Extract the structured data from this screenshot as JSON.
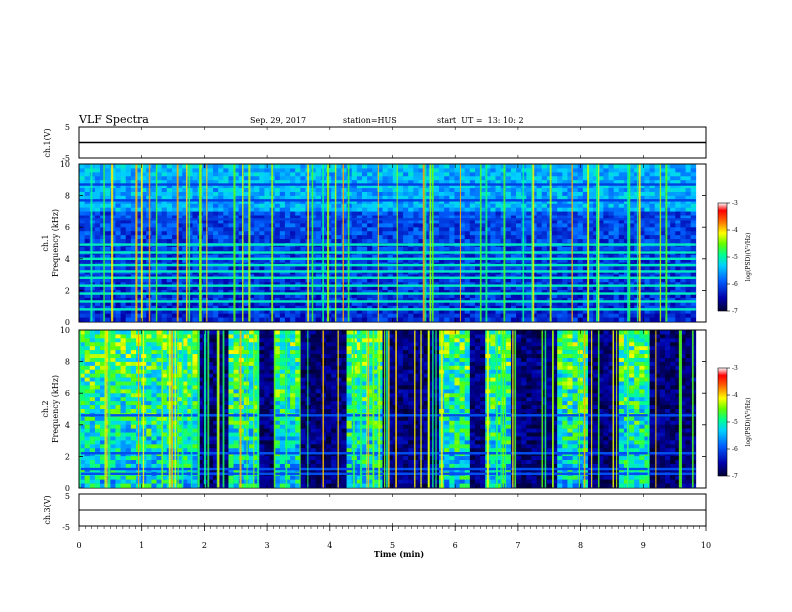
{
  "header": {
    "title": "VLF Spectra",
    "date": "Sep. 29, 2017",
    "station": "station=HUS",
    "start_ut": "start  UT =  13: 10: 2"
  },
  "chart_data": [
    {
      "type": "line",
      "name": "ch1-waveform",
      "ylabel": "ch.1(V)",
      "ylim": [
        -5,
        5
      ],
      "yticks": [
        "5",
        "-5"
      ],
      "xlim": [
        0,
        10
      ],
      "level": 0,
      "color": "#000000"
    },
    {
      "type": "heatmap",
      "name": "ch1-spectrogram",
      "ylabel": "ch.1\nFrequency (kHz)",
      "ylim": [
        0,
        10
      ],
      "yticks": [
        "0",
        "2",
        "4",
        "6",
        "8",
        "10"
      ],
      "xlim": [
        0,
        9.83
      ],
      "background_level": -6.3,
      "bands_khz": [
        0.8,
        1.3,
        1.8,
        2.3,
        2.8,
        3.2,
        3.6,
        4.0,
        4.4,
        4.9,
        6.5,
        7.7,
        8.7
      ],
      "colorbar": {
        "label": "log(PSD)(V²/Hz)",
        "ticks": [
          "-3",
          "-4",
          "-5",
          "-6",
          "-7"
        ],
        "range": [
          -7,
          -3
        ]
      }
    },
    {
      "type": "heatmap",
      "name": "ch2-spectrogram",
      "ylabel": "ch.2\nFrequency (kHz)",
      "ylim": [
        0,
        10
      ],
      "yticks": [
        "0",
        "2",
        "4",
        "6",
        "8",
        "10"
      ],
      "xlim": [
        0,
        9.83
      ],
      "background_level": -7,
      "bands_khz": [
        0.9,
        1.2,
        2.2,
        4.6
      ],
      "noise_bursts_min": [
        [
          0.0,
          1.9
        ],
        [
          2.4,
          2.9
        ],
        [
          3.1,
          3.5
        ],
        [
          4.3,
          4.8
        ],
        [
          5.7,
          6.2
        ],
        [
          6.5,
          6.9
        ],
        [
          7.6,
          8.1
        ],
        [
          8.6,
          9.1
        ]
      ],
      "colorbar": {
        "label": "log(PSD)(V²/Hz)",
        "ticks": [
          "-3",
          "-4",
          "-5",
          "-6",
          "-7"
        ],
        "range": [
          -7,
          -3
        ]
      }
    },
    {
      "type": "line",
      "name": "ch3-waveform",
      "ylabel": "ch.3(V)",
      "ylim": [
        -5,
        5
      ],
      "yticks": [
        "5",
        "-5"
      ],
      "xlim": [
        0,
        10
      ],
      "level": 0,
      "color": "#000000"
    }
  ],
  "x_axis": {
    "label": "Time (min)",
    "ticks": [
      "0",
      "1",
      "2",
      "3",
      "4",
      "5",
      "6",
      "7",
      "8",
      "9",
      "10"
    ],
    "range": [
      0,
      10
    ]
  }
}
